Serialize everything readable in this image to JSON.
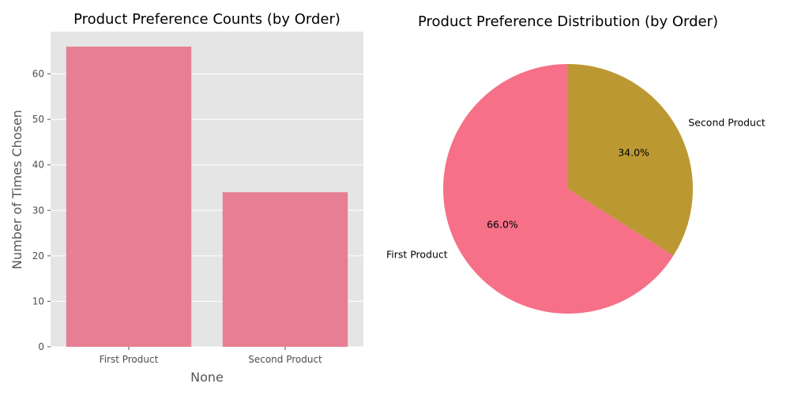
{
  "chart_data": [
    {
      "type": "bar",
      "title": "Product Preference Counts (by Order)",
      "xlabel": "None",
      "ylabel": "Number of Times Chosen",
      "categories": [
        "First Product",
        "Second Product"
      ],
      "values": [
        66,
        34
      ],
      "ylim": [
        0,
        69.3
      ],
      "yticks": [
        0,
        10,
        20,
        30,
        40,
        50,
        60
      ],
      "grid": true,
      "colors": {
        "bar": "#e67f93",
        "background": "#e5e5e5",
        "grid": "#ffffff"
      }
    },
    {
      "type": "pie",
      "title": "Product Preference Distribution (by Order)",
      "labels": [
        "First Product",
        "Second Product"
      ],
      "values": [
        66.0,
        34.0
      ],
      "percent_labels": [
        "66.0%",
        "34.0%"
      ],
      "start_angle": 90,
      "direction": "counterclockwise",
      "colors": [
        "#f67088",
        "#bb9832"
      ]
    }
  ]
}
